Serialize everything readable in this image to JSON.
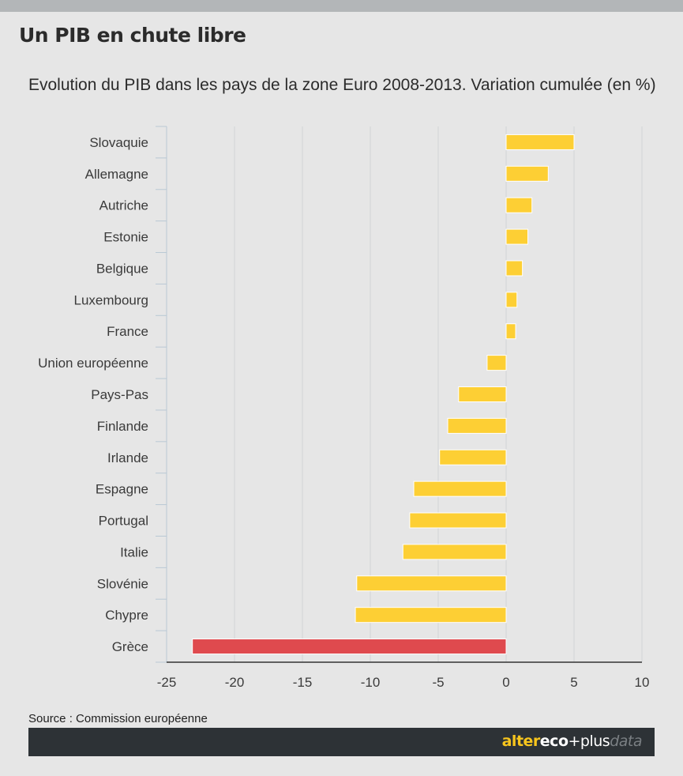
{
  "header": {
    "title": "Un PIB en chute libre",
    "subtitle": "Evolution du PIB dans les pays de la zone Euro 2008-2013. Variation cumulée (en %)"
  },
  "chart_data": {
    "type": "bar",
    "orientation": "horizontal",
    "categories": [
      "Slovaquie",
      "Allemagne",
      "Autriche",
      "Estonie",
      "Belgique",
      "Luxembourg",
      "France",
      "Union européenne",
      "Pays-Pas",
      "Finlande",
      "Irlande",
      "Espagne",
      "Portugal",
      "Italie",
      "Slovénie",
      "Chypre",
      "Grèce"
    ],
    "values": [
      5.0,
      3.1,
      1.9,
      1.6,
      1.2,
      0.8,
      0.7,
      -1.4,
      -3.5,
      -4.3,
      -4.9,
      -6.8,
      -7.1,
      -7.6,
      -11.0,
      -11.1,
      -23.1
    ],
    "highlight": "Grèce",
    "xlim": [
      -25,
      10
    ],
    "xticks": [
      -25,
      -20,
      -15,
      -10,
      -5,
      0,
      5,
      10
    ],
    "grid": true,
    "colors": {
      "bar": "#fdcf34",
      "highlight": "#df4a4e",
      "grid": "#d2d4d6",
      "axis": "#333333",
      "tick": "#b9c8d4"
    }
  },
  "source": "Source : Commission européenne",
  "footer": {
    "brand_alter": "alter",
    "brand_eco": "eco",
    "brand_plus": "+plus",
    "brand_data": "data"
  }
}
